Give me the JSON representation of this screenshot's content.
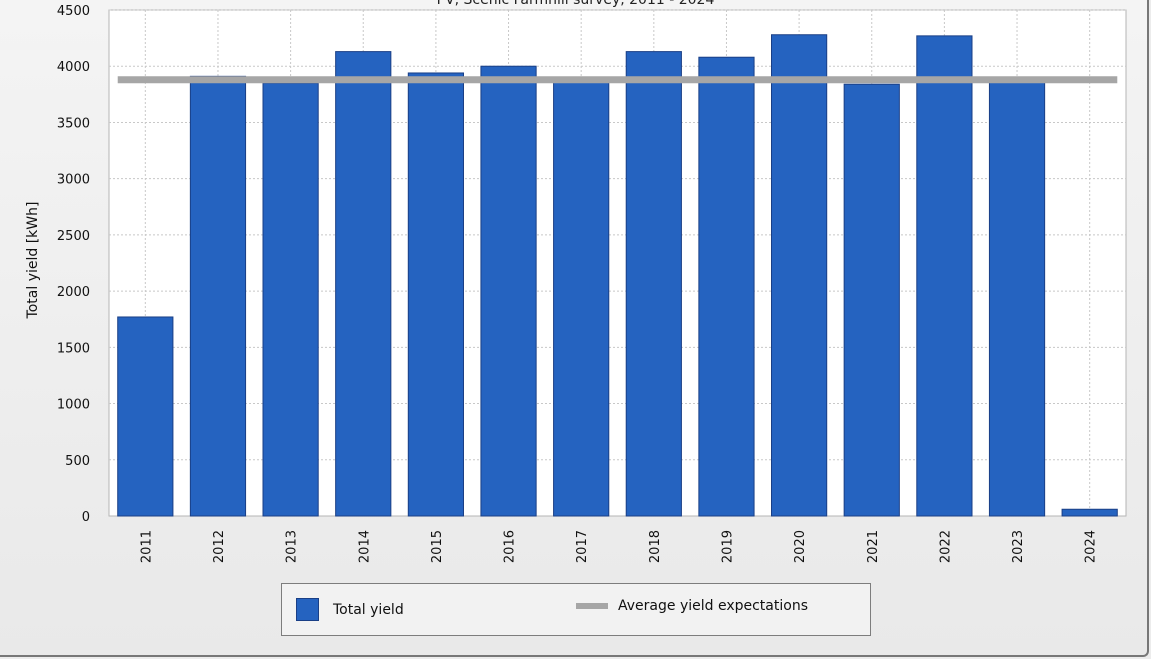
{
  "chart_data": {
    "type": "bar",
    "title": "PV, Scenic Farmhill survey, 2011 - 2024",
    "ylabel": "Total yield [kWh]",
    "xlabel": "",
    "categories": [
      "2011",
      "2012",
      "2013",
      "2014",
      "2015",
      "2016",
      "2017",
      "2018",
      "2019",
      "2020",
      "2021",
      "2022",
      "2023",
      "2024"
    ],
    "series": [
      {
        "name": "Total yield",
        "values": [
          1770,
          3910,
          3850,
          4130,
          3940,
          4000,
          3880,
          4130,
          4080,
          4280,
          3840,
          4270,
          3890,
          60
        ],
        "color": "#2563c0"
      }
    ],
    "reference_line": {
      "name": "Average yield expectations",
      "value": 3880,
      "color": "#a6a6a6"
    },
    "ylim": [
      0,
      4500
    ],
    "yticks": [
      0,
      500,
      1000,
      1500,
      2000,
      2500,
      3000,
      3500,
      4000,
      4500
    ],
    "grid": true,
    "legend_position": "bottom"
  },
  "legend": {
    "bars_label": "Total yield",
    "line_label": "Average yield expectations"
  }
}
